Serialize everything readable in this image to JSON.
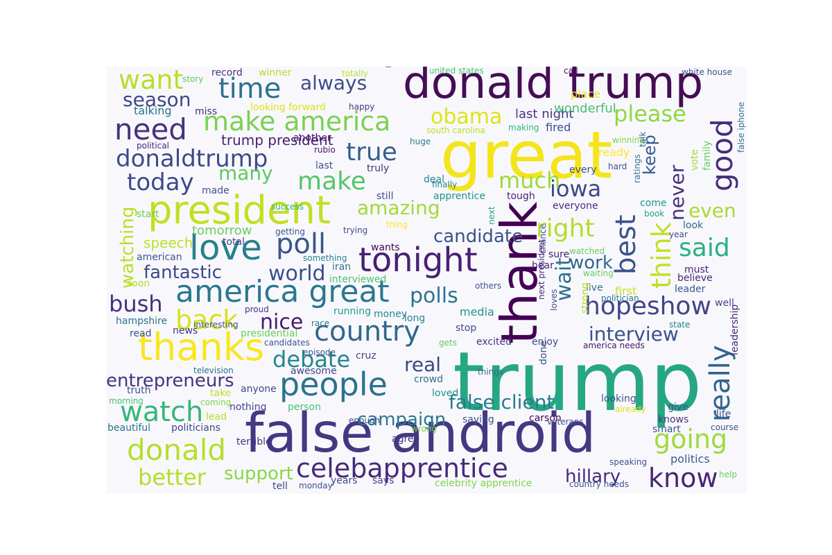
{
  "colors": {
    "figure_background": "#ffffff",
    "panel_background": "#f8f8fc"
  },
  "words": [
    {
      "text": "trump",
      "color": "#26a784"
    },
    {
      "text": "great",
      "color": "#f4e41c"
    },
    {
      "text": "donald trump",
      "color": "#450d54"
    },
    {
      "text": "false android",
      "color": "#453882"
    },
    {
      "text": "thank",
      "color": "#440154"
    },
    {
      "text": "president",
      "color": "#c2df23"
    },
    {
      "text": "thanks",
      "color": "#f8e621"
    },
    {
      "text": "america great",
      "color": "#2a788e"
    },
    {
      "text": "tonight",
      "color": "#482173"
    },
    {
      "text": "people",
      "color": "#2c728e"
    },
    {
      "text": "celebapprentice",
      "color": "#482979"
    },
    {
      "text": "make america",
      "color": "#7ad151"
    },
    {
      "text": "love",
      "color": "#27808e"
    },
    {
      "text": "country",
      "color": "#31688e"
    },
    {
      "text": "hopeshow",
      "color": "#414487"
    },
    {
      "text": "best",
      "color": "#3b528b"
    },
    {
      "text": "need",
      "color": "#46327e"
    },
    {
      "text": "time",
      "color": "#2c718e"
    },
    {
      "text": "donaldtrump",
      "color": "#3e4a89"
    },
    {
      "text": "good",
      "color": "#472c7a"
    },
    {
      "text": "really",
      "color": "#33638d"
    },
    {
      "text": "poll",
      "color": "#3a548c"
    },
    {
      "text": "know",
      "color": "#482475"
    },
    {
      "text": "watch",
      "color": "#35b779"
    },
    {
      "text": "donald",
      "color": "#b5de2b"
    },
    {
      "text": "going",
      "color": "#a0da39"
    },
    {
      "text": "true",
      "color": "#355f8d"
    },
    {
      "text": "back",
      "color": "#d8e219"
    },
    {
      "text": "today",
      "color": "#3e4989"
    },
    {
      "text": "right",
      "color": "#b2dd2d"
    },
    {
      "text": "think",
      "color": "#c0df25"
    },
    {
      "text": "want",
      "color": "#b8de29"
    },
    {
      "text": "keep",
      "color": "#38588c"
    },
    {
      "text": "make",
      "color": "#54c568"
    },
    {
      "text": "debate",
      "color": "#24878e"
    },
    {
      "text": "amazing",
      "color": "#a2da37"
    },
    {
      "text": "please",
      "color": "#90d743"
    },
    {
      "text": "never",
      "color": "#472f7d"
    },
    {
      "text": "iowa",
      "color": "#3f4788"
    },
    {
      "text": "obama",
      "color": "#dfe318"
    },
    {
      "text": "polls",
      "color": "#2c738e"
    },
    {
      "text": "said",
      "color": "#2ab07f"
    },
    {
      "text": "bush",
      "color": "#46307e"
    },
    {
      "text": "better",
      "color": "#b5de2b"
    },
    {
      "text": "much",
      "color": "#9dd93b"
    },
    {
      "text": "interview",
      "color": "#3b518b"
    },
    {
      "text": "wait",
      "color": "#2d708e"
    },
    {
      "text": "false client",
      "color": "#287d8e"
    },
    {
      "text": "always",
      "color": "#3e4c8a"
    },
    {
      "text": "candidate",
      "color": "#3b528b"
    },
    {
      "text": "nice",
      "color": "#481b6d"
    },
    {
      "text": "entrepreneurs",
      "color": "#46327e"
    },
    {
      "text": "world",
      "color": "#3c4f8a"
    },
    {
      "text": "hillary",
      "color": "#472a7a"
    },
    {
      "text": "support",
      "color": "#8bd646"
    },
    {
      "text": "many",
      "color": "#5ec962"
    },
    {
      "text": "fantastic",
      "color": "#3f4788"
    },
    {
      "text": "real",
      "color": "#404588"
    },
    {
      "text": "season",
      "color": "#3f4889"
    },
    {
      "text": "campaign",
      "color": "#2a788e"
    },
    {
      "text": "work",
      "color": "#31688e"
    },
    {
      "text": "even",
      "color": "#a8db34"
    },
    {
      "text": "watching",
      "color": "#bade28"
    },
    {
      "text": "trump president",
      "color": "#482071"
    },
    {
      "text": "speech",
      "color": "#bddf26"
    },
    {
      "text": "tomorrow",
      "color": "#6ccd5a"
    },
    {
      "text": "last night",
      "color": "#453781"
    },
    {
      "text": "wonderful",
      "color": "#45bf70"
    },
    {
      "text": "fired",
      "color": "#3e4989"
    },
    {
      "text": "politics",
      "color": "#355e8d"
    },
    {
      "text": "leadership",
      "color": "#482878"
    },
    {
      "text": "record",
      "color": "#46337f"
    },
    {
      "text": "winner",
      "color": "#b2dd2d"
    },
    {
      "text": "story",
      "color": "#5ec962"
    },
    {
      "text": "totally",
      "color": "#b5de2b"
    },
    {
      "text": "needs",
      "color": "#3b518b"
    },
    {
      "text": "united states",
      "color": "#4ac16d"
    },
    {
      "text": "call",
      "color": "#440154"
    },
    {
      "text": "white house",
      "color": "#3b518b"
    },
    {
      "text": "talking",
      "color": "#2c718e"
    },
    {
      "text": "miss",
      "color": "#46307e"
    },
    {
      "text": "looking forward",
      "color": "#dde318"
    },
    {
      "text": "happy",
      "color": "#46337f"
    },
    {
      "text": "place",
      "color": "#e7e419"
    },
    {
      "text": "south carolina",
      "color": "#b8de29"
    },
    {
      "text": "making",
      "color": "#2eb37c"
    },
    {
      "text": "huge",
      "color": "#287c8e"
    },
    {
      "text": "rubio",
      "color": "#471365"
    },
    {
      "text": "winning",
      "color": "#7fd34e"
    },
    {
      "text": "political",
      "color": "#482576"
    },
    {
      "text": "another",
      "color": "#471164"
    },
    {
      "text": "ready",
      "color": "#fde725"
    },
    {
      "text": "talk",
      "color": "#31688e"
    },
    {
      "text": "false iphone",
      "color": "#2e6f8e"
    },
    {
      "text": "vote",
      "color": "#a2da37"
    },
    {
      "text": "family",
      "color": "#65cb5e"
    },
    {
      "text": "last",
      "color": "#39568c"
    },
    {
      "text": "truly",
      "color": "#46307e"
    },
    {
      "text": "deal",
      "color": "#24878e"
    },
    {
      "text": "finally",
      "color": "#24878e"
    },
    {
      "text": "hard",
      "color": "#3d4d8a"
    },
    {
      "text": "every",
      "color": "#3b518b"
    },
    {
      "text": "ratings",
      "color": "#2c718e"
    },
    {
      "text": "book",
      "color": "#1fa188"
    },
    {
      "text": "come",
      "color": "#1f968b"
    },
    {
      "text": "made",
      "color": "#3b528b"
    },
    {
      "text": "success",
      "color": "#2ab07f"
    },
    {
      "text": "start",
      "color": "#6ccd5a"
    },
    {
      "text": "still",
      "color": "#3e4c8a"
    },
    {
      "text": "apprentice",
      "color": "#20928c"
    },
    {
      "text": "tough",
      "color": "#481f70"
    },
    {
      "text": "everyone",
      "color": "#472d7b"
    },
    {
      "text": "next",
      "color": "#22a884"
    },
    {
      "text": "thing",
      "color": "#fde725"
    },
    {
      "text": "trying",
      "color": "#404688"
    },
    {
      "text": "getting",
      "color": "#3b528b"
    },
    {
      "text": "total",
      "color": "#404588"
    },
    {
      "text": "look",
      "color": "#31688e"
    },
    {
      "text": "year",
      "color": "#3e4989"
    },
    {
      "text": "wants",
      "color": "#440154"
    },
    {
      "text": "american",
      "color": "#39568c"
    },
    {
      "text": "iran",
      "color": "#2c728e"
    },
    {
      "text": "something",
      "color": "#26828e"
    },
    {
      "text": "chance",
      "color": "#3b518b"
    },
    {
      "text": "sure",
      "color": "#481769"
    },
    {
      "text": "watched",
      "color": "#65cb5e"
    },
    {
      "text": "hear",
      "color": "#481f70"
    },
    {
      "text": "must",
      "color": "#481f70"
    },
    {
      "text": "believe",
      "color": "#482576"
    },
    {
      "text": "leader",
      "color": "#39568c"
    },
    {
      "text": "soon",
      "color": "#b5de2b"
    },
    {
      "text": "interviewed",
      "color": "#4ac16d"
    },
    {
      "text": "others",
      "color": "#3b528b"
    },
    {
      "text": "waiting",
      "color": "#65cb5e"
    },
    {
      "text": "live",
      "color": "#2c718e"
    },
    {
      "text": "first",
      "color": "#c8e020"
    },
    {
      "text": "politician",
      "color": "#2c718e"
    },
    {
      "text": "next president",
      "color": "#482576"
    },
    {
      "text": "loves",
      "color": "#3b518b"
    },
    {
      "text": "strong",
      "color": "#b2dd2d"
    },
    {
      "text": "well",
      "color": "#414487"
    },
    {
      "text": "hampshire",
      "color": "#2c728e"
    },
    {
      "text": "proud",
      "color": "#46307e"
    },
    {
      "text": "running",
      "color": "#1f9e89"
    },
    {
      "text": "money",
      "color": "#24878e"
    },
    {
      "text": "long",
      "color": "#26828e"
    },
    {
      "text": "media",
      "color": "#21918c"
    },
    {
      "text": "state",
      "color": "#26828e"
    },
    {
      "text": "interesting",
      "color": "#3b528b"
    },
    {
      "text": "race",
      "color": "#2c728e"
    },
    {
      "text": "news",
      "color": "#46337f"
    },
    {
      "text": "read",
      "color": "#3b518b"
    },
    {
      "text": "stop",
      "color": "#3e4989"
    },
    {
      "text": "presidential",
      "color": "#6ccd5a"
    },
    {
      "text": "candidates",
      "color": "#3b528b"
    },
    {
      "text": "gets",
      "color": "#5ec962"
    },
    {
      "text": "excited",
      "color": "#46337f"
    },
    {
      "text": "enjoy",
      "color": "#3e4989"
    },
    {
      "text": "america needs",
      "color": "#471365"
    },
    {
      "text": "episode",
      "color": "#3b528b"
    },
    {
      "text": "cruz",
      "color": "#3f4889"
    },
    {
      "text": "awesome",
      "color": "#404588"
    },
    {
      "text": "television",
      "color": "#2c718e"
    },
    {
      "text": "things",
      "color": "#31688e"
    },
    {
      "text": "done",
      "color": "#3b518b"
    },
    {
      "text": "crowd",
      "color": "#2c718e"
    },
    {
      "text": "truth",
      "color": "#3b528b"
    },
    {
      "text": "take",
      "color": "#bddf26"
    },
    {
      "text": "anyone",
      "color": "#3e4989"
    },
    {
      "text": "loved",
      "color": "#20928c"
    },
    {
      "text": "morning",
      "color": "#45bf70"
    },
    {
      "text": "coming",
      "color": "#7fd34e"
    },
    {
      "text": "nothing",
      "color": "#404588"
    },
    {
      "text": "person",
      "color": "#45bf70"
    },
    {
      "text": "already",
      "color": "#dde318"
    },
    {
      "text": "give",
      "color": "#3b518b"
    },
    {
      "text": "lead",
      "color": "#b8de29"
    },
    {
      "text": "enough",
      "color": "#3e4c8a"
    },
    {
      "text": "wrong",
      "color": "#7fd34e"
    },
    {
      "text": "saying",
      "color": "#3b528b"
    },
    {
      "text": "carson",
      "color": "#440154"
    },
    {
      "text": "veterans",
      "color": "#3b518b"
    },
    {
      "text": "knows",
      "color": "#46337f"
    },
    {
      "text": "life",
      "color": "#3b518b"
    },
    {
      "text": "beautiful",
      "color": "#2c718e"
    },
    {
      "text": "politicians",
      "color": "#404588"
    },
    {
      "text": "agree",
      "color": "#46307e"
    },
    {
      "text": "smart",
      "color": "#39568c"
    },
    {
      "text": "course",
      "color": "#3b518b"
    },
    {
      "text": "terrible",
      "color": "#472f7d"
    },
    {
      "text": "speaking",
      "color": "#3b528b"
    },
    {
      "text": "years",
      "color": "#3e4989"
    },
    {
      "text": "says",
      "color": "#404588"
    },
    {
      "text": "celebrity apprentice",
      "color": "#7fd34e"
    },
    {
      "text": "country needs",
      "color": "#3b518b"
    },
    {
      "text": "help",
      "color": "#6ccd5a"
    },
    {
      "text": "tell",
      "color": "#3e4989"
    },
    {
      "text": "monday",
      "color": "#3b518b"
    },
    {
      "text": "looking",
      "color": "#3b528b"
    }
  ]
}
